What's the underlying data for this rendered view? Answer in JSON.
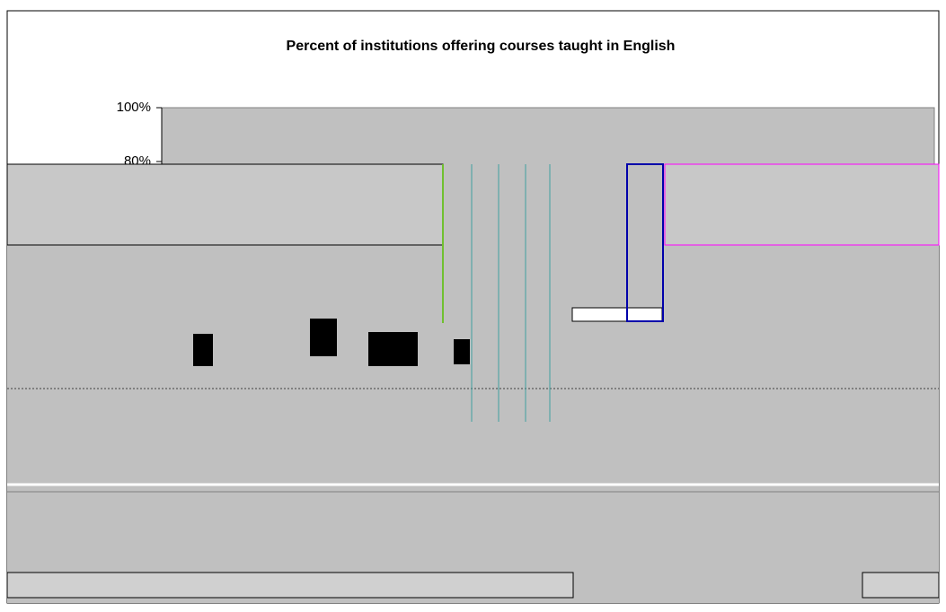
{
  "chart_data": {
    "type": "bar",
    "title": "Percent of institutions offering courses taught in English",
    "ylim": [
      0,
      100
    ],
    "yticks": [
      {
        "value": 100,
        "label": "100%"
      },
      {
        "value": 80,
        "label": "80%"
      }
    ],
    "grid": false
  }
}
